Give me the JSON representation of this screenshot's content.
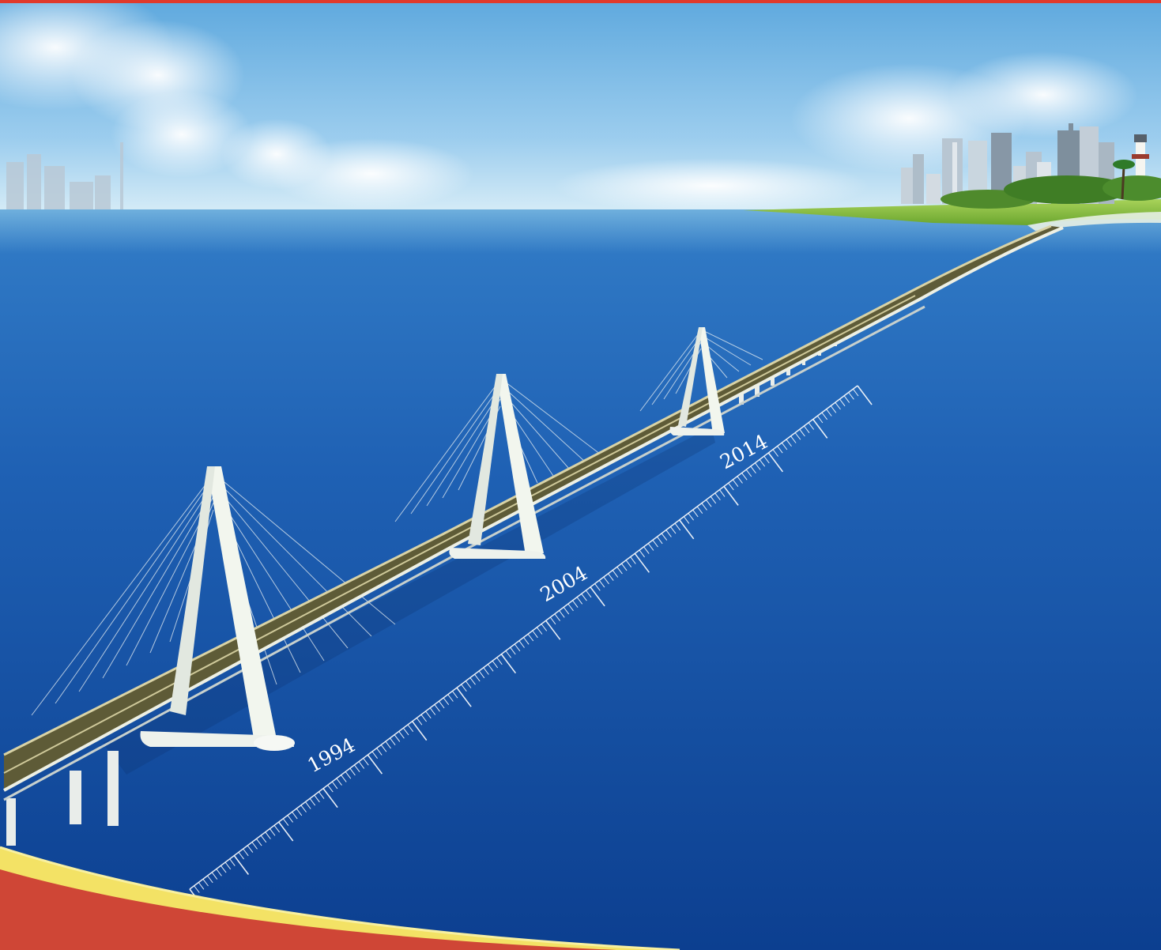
{
  "timeline": {
    "labels": [
      {
        "text": "1994"
      },
      {
        "text": "2004"
      },
      {
        "text": "2014"
      }
    ]
  },
  "palette": {
    "border_red": "#e03a2c",
    "band_yellow": "#f3e265",
    "band_red": "#cf4636",
    "sea_deep": "#0c3f90",
    "sea_mid": "#1f61b4",
    "sky_top": "#5fa9de",
    "sky_horizon": "#d6ecf7",
    "land_green": "#8cc43f",
    "pylon_white": "#f2f6ee",
    "deck_olive": "#5e5b37"
  }
}
